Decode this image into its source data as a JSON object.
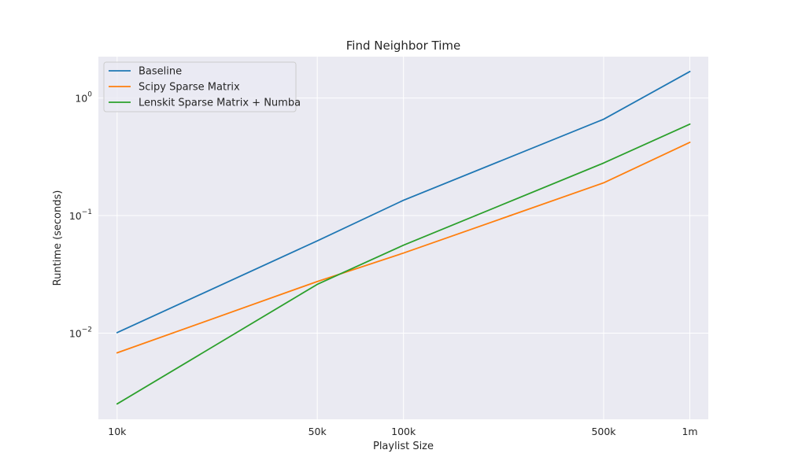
{
  "chart_data": {
    "type": "line",
    "title": "Find Neighbor Time",
    "xlabel": "Playlist Size",
    "ylabel": "Runtime (seconds)",
    "xscale": "log",
    "yscale": "log",
    "x": [
      10000,
      50000,
      100000,
      500000,
      1000000
    ],
    "xtick_values": [
      10000,
      50000,
      100000,
      500000,
      1000000
    ],
    "xtick_labels": [
      "10k",
      "50k",
      "100k",
      "500k",
      "1m"
    ],
    "ytick_values": [
      0.01,
      0.1,
      1
    ],
    "ytick_labels": [
      {
        "base": "10",
        "exp": "−2"
      },
      {
        "base": "10",
        "exp": "−1"
      },
      {
        "base": "10",
        "exp": "0"
      }
    ],
    "xlim": [
      8600,
      1160000
    ],
    "ylim": [
      0.00185,
      2.25
    ],
    "grid": true,
    "legend_position": "top-left",
    "series": [
      {
        "name": "Baseline",
        "color": "#1f77b4",
        "values": [
          0.0101,
          0.061,
          0.135,
          0.66,
          1.68
        ]
      },
      {
        "name": "Scipy Sparse Matrix",
        "color": "#ff7f0e",
        "values": [
          0.0068,
          0.0275,
          0.048,
          0.19,
          0.42
        ]
      },
      {
        "name": "Lenskit Sparse Matrix + Numba",
        "color": "#2ca02c",
        "values": [
          0.0025,
          0.026,
          0.056,
          0.28,
          0.6
        ]
      }
    ]
  }
}
